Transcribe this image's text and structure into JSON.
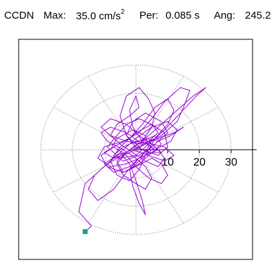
{
  "header": {
    "station": "CCDN",
    "max_label": "Max:",
    "max_value": "35.0 cm/s",
    "max_exp": "2",
    "per_label": "Per:",
    "per_value": "0.085 s",
    "ang_label": "Ang:",
    "ang_value": "245.2"
  },
  "chart_data": {
    "type": "polar-hodogram",
    "title": "CCDN  Max: 35.0 cm/s2  Per: 0.085 s  Ang: 245.2",
    "units": "cm/s2",
    "radial_ticks": [
      10,
      20,
      30
    ],
    "rings": [
      10,
      20,
      30
    ],
    "spokes_deg": [
      0,
      30,
      60,
      90,
      120,
      150,
      180,
      210,
      240,
      270,
      300,
      330
    ],
    "radial_range": [
      0,
      38
    ],
    "grid": true,
    "max_magnitude": 35.0,
    "max_angle_deg": 245.2,
    "endpoint": {
      "x": -16.0,
      "y": -29.0
    },
    "colors": {
      "trace": "#9400d3",
      "marker": "#1aa07a",
      "grid": "#777777",
      "axis": "#000000"
    },
    "trace": [
      [
        -14,
        -27
      ],
      [
        -18,
        -22
      ],
      [
        -16,
        -12
      ],
      [
        -9,
        -5
      ],
      [
        -3,
        -1
      ],
      [
        2,
        3
      ],
      [
        5,
        8
      ],
      [
        6,
        13
      ],
      [
        4,
        18
      ],
      [
        1,
        22
      ],
      [
        -3,
        19
      ],
      [
        -5,
        12
      ],
      [
        -3,
        5
      ],
      [
        2,
        0
      ],
      [
        7,
        -2
      ],
      [
        10,
        1
      ],
      [
        9,
        6
      ],
      [
        5,
        9
      ],
      [
        0,
        6
      ],
      [
        -5,
        1
      ],
      [
        -8,
        -4
      ],
      [
        -6,
        -9
      ],
      [
        -2,
        -11
      ],
      [
        1,
        -7
      ],
      [
        3,
        -2
      ],
      [
        6,
        4
      ],
      [
        10,
        9
      ],
      [
        12,
        14
      ],
      [
        10,
        18
      ],
      [
        6,
        15
      ],
      [
        2,
        9
      ],
      [
        -2,
        4
      ],
      [
        -7,
        1
      ],
      [
        -11,
        -2
      ],
      [
        -9,
        -6
      ],
      [
        -4,
        -8
      ],
      [
        1,
        -5
      ],
      [
        5,
        -1
      ],
      [
        8,
        2
      ],
      [
        6,
        5
      ],
      [
        2,
        3
      ],
      [
        -3,
        -1
      ],
      [
        -6,
        -5
      ],
      [
        -4,
        -9
      ],
      [
        0,
        -12
      ],
      [
        3,
        -14
      ],
      [
        5,
        -10
      ],
      [
        3,
        -6
      ],
      [
        0,
        -3
      ],
      [
        -4,
        0
      ],
      [
        -9,
        3
      ],
      [
        -11,
        6
      ],
      [
        -8,
        8
      ],
      [
        -3,
        6
      ],
      [
        2,
        2
      ],
      [
        8,
        5
      ],
      [
        13,
        10
      ],
      [
        15,
        15
      ],
      [
        17,
        21
      ],
      [
        14,
        22
      ],
      [
        9,
        17
      ],
      [
        5,
        11
      ],
      [
        1,
        6
      ],
      [
        -4,
        3
      ],
      [
        -10,
        1
      ],
      [
        -12,
        -3
      ],
      [
        -8,
        -6
      ],
      [
        -3,
        -5
      ],
      [
        3,
        -2
      ],
      [
        7,
        0
      ],
      [
        9,
        -3
      ],
      [
        7,
        -6
      ],
      [
        3,
        -4
      ],
      [
        -1,
        -1
      ],
      [
        -5,
        2
      ],
      [
        -8,
        5
      ],
      [
        -6,
        9
      ],
      [
        -2,
        12
      ],
      [
        1,
        15
      ],
      [
        0,
        19
      ],
      [
        -2,
        14
      ],
      [
        -1,
        8
      ],
      [
        2,
        3
      ],
      [
        6,
        0
      ],
      [
        11,
        3
      ],
      [
        13,
        7
      ],
      [
        10,
        10
      ],
      [
        5,
        8
      ],
      [
        0,
        4
      ],
      [
        -5,
        -1
      ],
      [
        -9,
        -5
      ],
      [
        -13,
        -9
      ],
      [
        -15,
        -14
      ],
      [
        -12,
        -18
      ],
      [
        -7,
        -14
      ],
      [
        -3,
        -8
      ],
      [
        1,
        -3
      ],
      [
        4,
        1
      ],
      [
        3,
        5
      ],
      [
        -1,
        7
      ],
      [
        -6,
        4
      ],
      [
        -8,
        0
      ],
      [
        -5,
        -3
      ],
      [
        0,
        -2
      ],
      [
        4,
        2
      ],
      [
        9,
        7
      ],
      [
        14,
        13
      ],
      [
        19,
        19
      ],
      [
        22,
        22
      ],
      [
        18,
        19
      ],
      [
        13,
        14
      ],
      [
        8,
        9
      ],
      [
        3,
        4
      ],
      [
        -2,
        0
      ],
      [
        -6,
        -4
      ],
      [
        -4,
        -8
      ],
      [
        0,
        -6
      ],
      [
        5,
        -3
      ],
      [
        8,
        -5
      ],
      [
        10,
        -9
      ],
      [
        8,
        -12
      ],
      [
        4,
        -10
      ],
      [
        0,
        -6
      ],
      [
        -3,
        -2
      ],
      [
        -7,
        1
      ],
      [
        -10,
        -1
      ],
      [
        -7,
        -3
      ],
      [
        -2,
        -1
      ],
      [
        3,
        2
      ],
      [
        7,
        6
      ],
      [
        5,
        9
      ],
      [
        1,
        11
      ],
      [
        -3,
        9
      ],
      [
        -6,
        5
      ],
      [
        -9,
        1
      ],
      [
        -6,
        -2
      ],
      [
        -1,
        0
      ],
      [
        4,
        3
      ],
      [
        6,
        1
      ],
      [
        2,
        -3
      ],
      [
        -2,
        -7
      ],
      [
        -1,
        -13
      ],
      [
        1,
        -19
      ],
      [
        3,
        -23
      ],
      [
        2,
        -18
      ],
      [
        0,
        -11
      ],
      [
        -2,
        -5
      ],
      [
        -5,
        -1
      ],
      [
        -2,
        2
      ],
      [
        3,
        4
      ],
      [
        7,
        3
      ],
      [
        11,
        5
      ],
      [
        15,
        8
      ],
      [
        12,
        6
      ],
      [
        7,
        4
      ],
      [
        2,
        2
      ],
      [
        -3,
        3
      ],
      [
        -8,
        5
      ],
      [
        -11,
        8
      ],
      [
        -8,
        11
      ],
      [
        -3,
        9
      ],
      [
        1,
        5
      ],
      [
        5,
        2
      ],
      [
        9,
        1
      ],
      [
        12,
        -2
      ],
      [
        9,
        -4
      ],
      [
        4,
        -2
      ],
      [
        -1,
        0
      ],
      [
        -6,
        -2
      ],
      [
        -10,
        -5
      ],
      [
        -7,
        -8
      ],
      [
        -2,
        -6
      ],
      [
        2,
        -2
      ],
      [
        6,
        2
      ],
      [
        10,
        6
      ],
      [
        8,
        10
      ],
      [
        3,
        13
      ],
      [
        -1,
        10
      ],
      [
        -3,
        5
      ],
      [
        0,
        1
      ],
      [
        4,
        -1
      ],
      [
        8,
        -1
      ],
      [
        5,
        2
      ],
      [
        0,
        3
      ],
      [
        -4,
        1
      ],
      [
        -7,
        -2
      ],
      [
        -4,
        -4
      ],
      [
        1,
        -2
      ],
      [
        5,
        1
      ],
      [
        2,
        4
      ]
    ]
  }
}
